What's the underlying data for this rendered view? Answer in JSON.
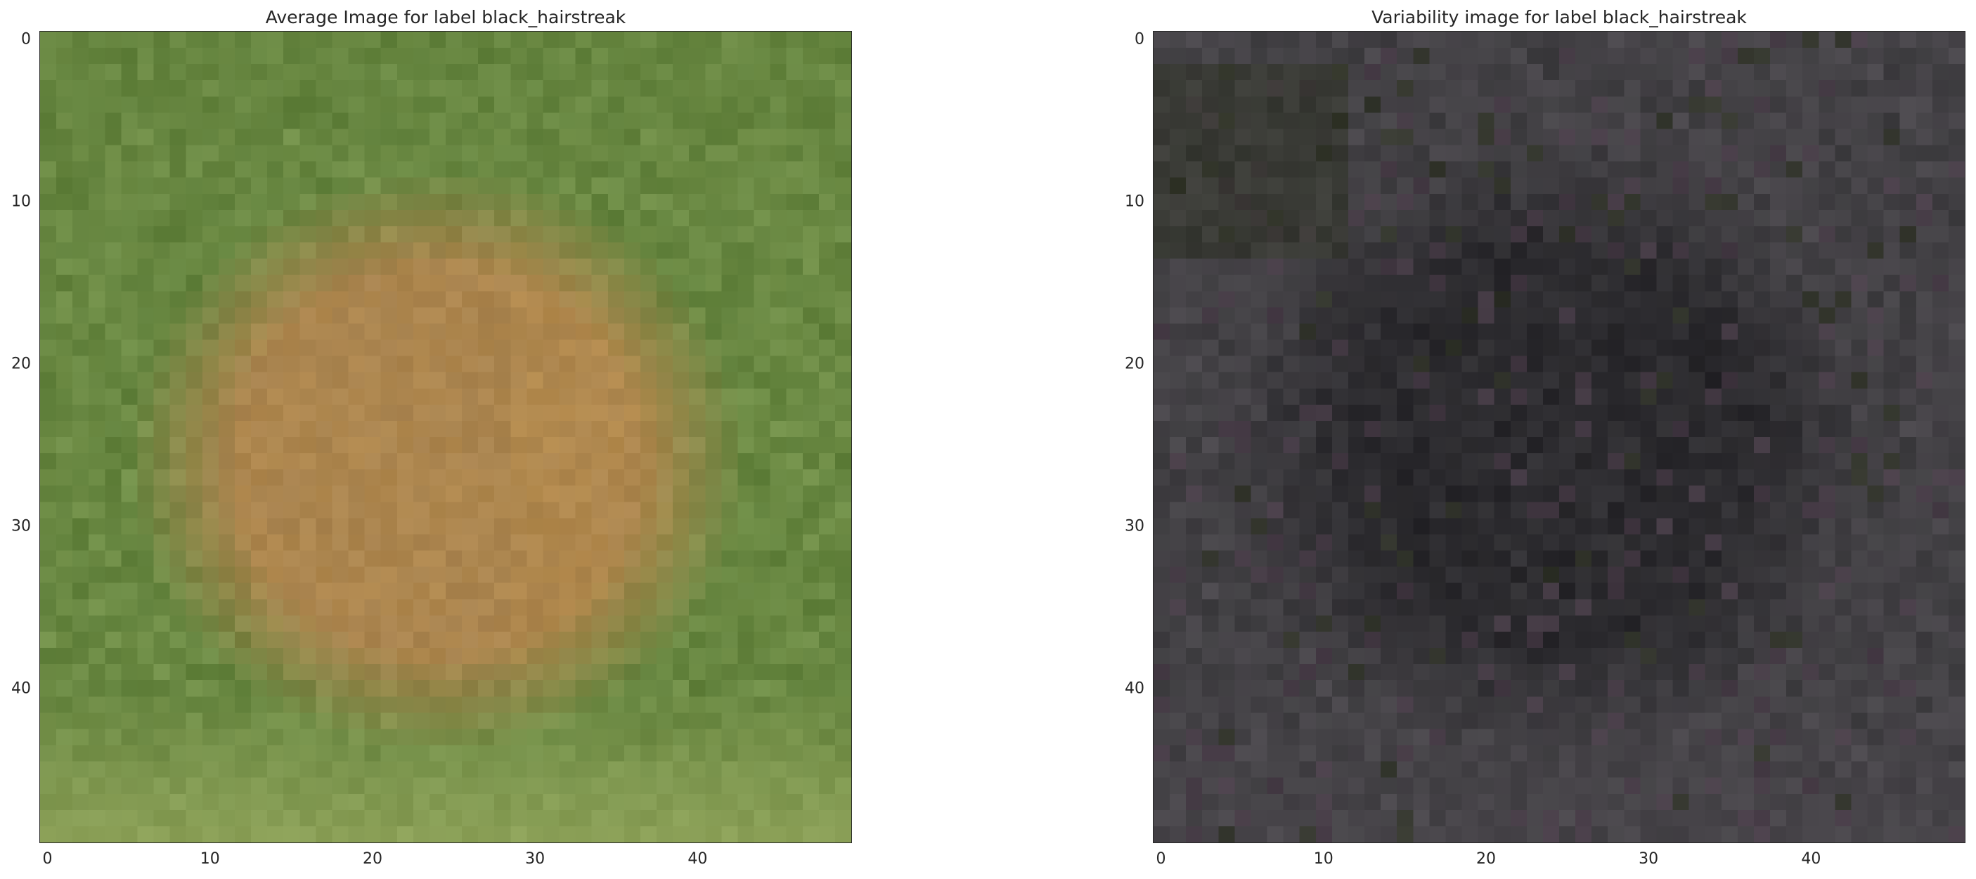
{
  "chart_data": [
    {
      "type": "heatmap",
      "title": "Average Image for label black_hairstreak",
      "grid_size": [
        50,
        50
      ],
      "xlim": [
        -0.5,
        49.5
      ],
      "ylim": [
        49.5,
        -0.5
      ],
      "x_ticks": [
        0,
        10,
        20,
        30,
        40
      ],
      "y_ticks": [
        0,
        10,
        20,
        30,
        40
      ],
      "grid": false,
      "palette": {
        "edge_green": "#73914a",
        "dark_green": "#5f7f3a",
        "light_green": "#8ea259",
        "center_brown": "#a8834f",
        "orange_brown": "#b48a4c"
      },
      "description_regions": {
        "center": [
          24,
          26
        ],
        "radius_x": 18,
        "radius_y": 17
      }
    },
    {
      "type": "heatmap",
      "title": "Variability image for label black_hairstreak",
      "grid_size": [
        50,
        50
      ],
      "xlim": [
        -0.5,
        49.5
      ],
      "ylim": [
        49.5,
        -0.5
      ],
      "x_ticks": [
        0,
        10,
        20,
        30,
        40
      ],
      "y_ticks": [
        0,
        10,
        20,
        30,
        40
      ],
      "grid": false,
      "palette": {
        "base_gray": "#3d3c3f",
        "dark_center": "#262529",
        "edge_gray": "#4a474c",
        "olive_tint": "#2f3325",
        "purple_tint": "#4a3c49"
      },
      "description_regions": {
        "center": [
          24,
          25
        ],
        "radius_x": 19,
        "radius_y": 18
      }
    }
  ]
}
